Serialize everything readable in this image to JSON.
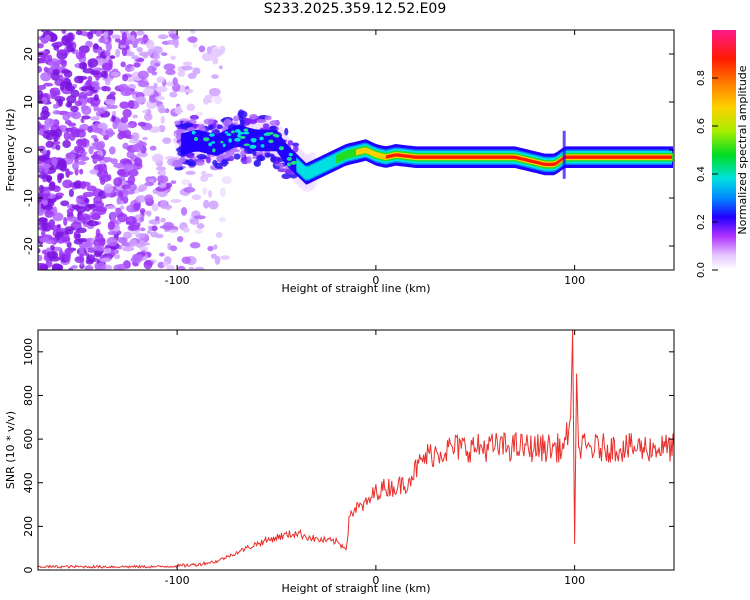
{
  "figure": {
    "title": "S233.2025.359.12.52.E09"
  },
  "chart_data": [
    {
      "type": "heatmap",
      "name": "spectrogram",
      "xlabel": "Height of straight line (km)",
      "ylabel": "Frequency (Hz)",
      "xlim": [
        -170,
        150
      ],
      "ylim": [
        -25,
        25
      ],
      "xticks": [
        -100,
        0,
        100
      ],
      "yticks": [
        -20,
        -10,
        0,
        10,
        20
      ],
      "colorbar": {
        "label": "Normalized spectral amplitude",
        "range": [
          0,
          1
        ],
        "ticks": [
          "0.0",
          "0.2",
          "0.4",
          "0.6",
          "0.8"
        ]
      },
      "ridge": {
        "x": [
          -100,
          -90,
          -80,
          -70,
          -60,
          -50,
          -45,
          -40,
          -35,
          -30,
          -25,
          -20,
          -15,
          -10,
          -5,
          0,
          5,
          10,
          20,
          30,
          40,
          50,
          60,
          70,
          80,
          85,
          90,
          95,
          100,
          110,
          120,
          130,
          140,
          150
        ],
        "y": [
          1,
          2,
          1,
          3,
          2,
          2,
          -1,
          -3,
          -5,
          -4,
          -3,
          -2,
          -1,
          -0.5,
          0,
          -1,
          -1.5,
          -1,
          -1.5,
          -1.5,
          -1.5,
          -1.5,
          -1.5,
          -1.5,
          -2.5,
          -3,
          -3,
          -1.5,
          -1.5,
          -1.5,
          -1.5,
          -1.5,
          -1.5,
          -1.5
        ]
      }
    },
    {
      "type": "line",
      "name": "snr",
      "xlabel": "Height of straight line (km)",
      "ylabel": "SNR (10 * v/v)",
      "xlim": [
        -170,
        150
      ],
      "ylim": [
        0,
        1100
      ],
      "xticks": [
        -100,
        0,
        100
      ],
      "yticks": [
        0,
        200,
        400,
        600,
        800,
        1000
      ],
      "color": "#e8302c",
      "series": [
        {
          "name": "SNR",
          "x": [
            -170,
            -150,
            -130,
            -110,
            -100,
            -90,
            -80,
            -70,
            -60,
            -50,
            -40,
            -30,
            -20,
            -15,
            -13,
            -10,
            -5,
            0,
            5,
            10,
            15,
            20,
            25,
            30,
            40,
            50,
            60,
            70,
            80,
            90,
            95,
            98,
            99,
            100,
            101,
            102,
            105,
            110,
            120,
            130,
            140,
            150
          ],
          "y": [
            15,
            15,
            15,
            15,
            18,
            25,
            40,
            80,
            120,
            150,
            170,
            140,
            130,
            100,
            260,
            280,
            300,
            360,
            380,
            380,
            400,
            460,
            520,
            540,
            560,
            560,
            565,
            565,
            560,
            560,
            560,
            700,
            1100,
            120,
            900,
            560,
            560,
            560,
            560,
            560,
            560,
            560
          ]
        }
      ]
    }
  ]
}
